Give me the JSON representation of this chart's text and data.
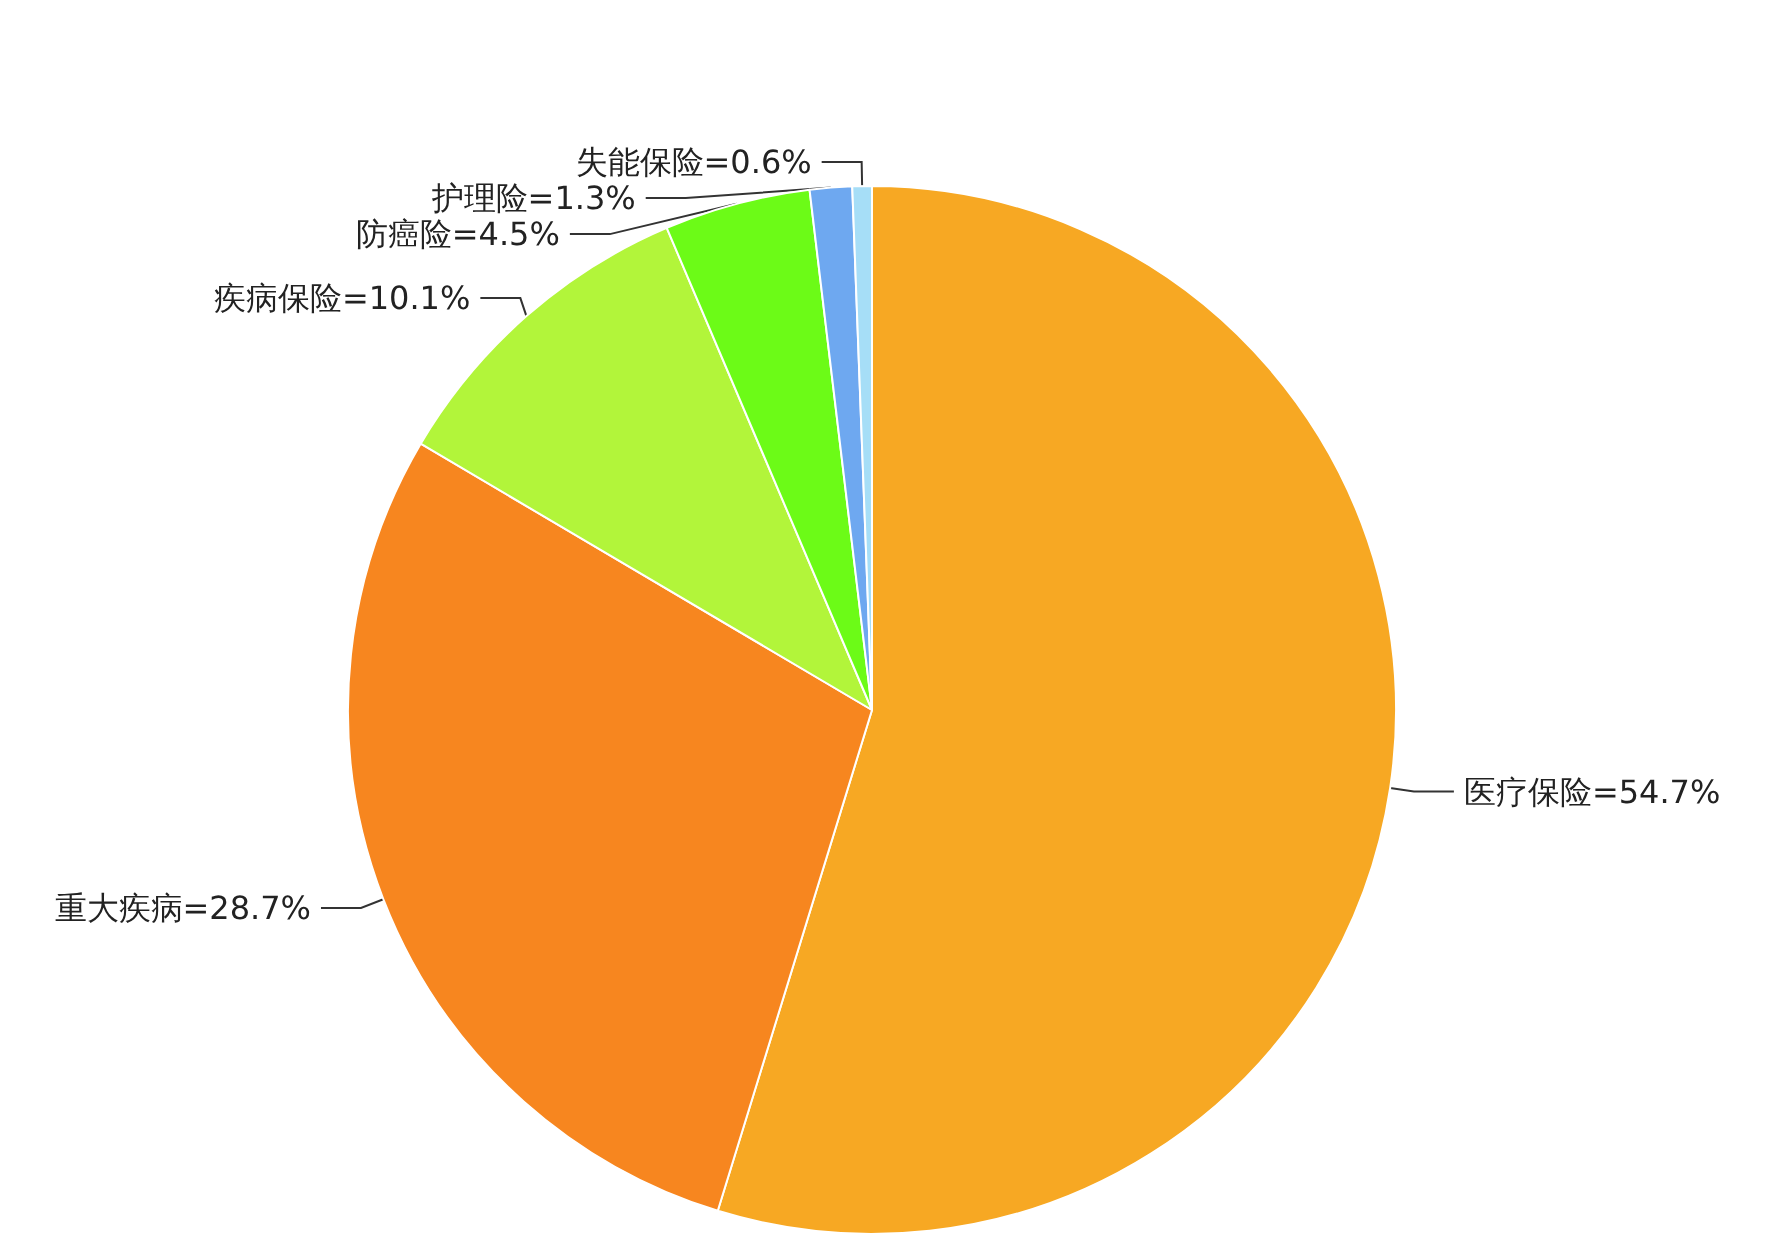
{
  "chart_data": {
    "type": "pie",
    "categories": [
      "医疗保险",
      "重大疾病",
      "疾病保险",
      "防癌险",
      "护理险",
      "失能保险"
    ],
    "values": [
      54.7,
      28.7,
      10.1,
      4.5,
      1.3,
      0.6
    ],
    "colors": [
      "#f7a823",
      "#f7861f",
      "#b2f53a",
      "#6cfb17",
      "#6ea8f0",
      "#a6def7"
    ],
    "value_labels": [
      "=54.7%",
      "=28.7%",
      "=10.1%",
      "=4.5%",
      "=1.3%",
      "=0.6%"
    ]
  }
}
